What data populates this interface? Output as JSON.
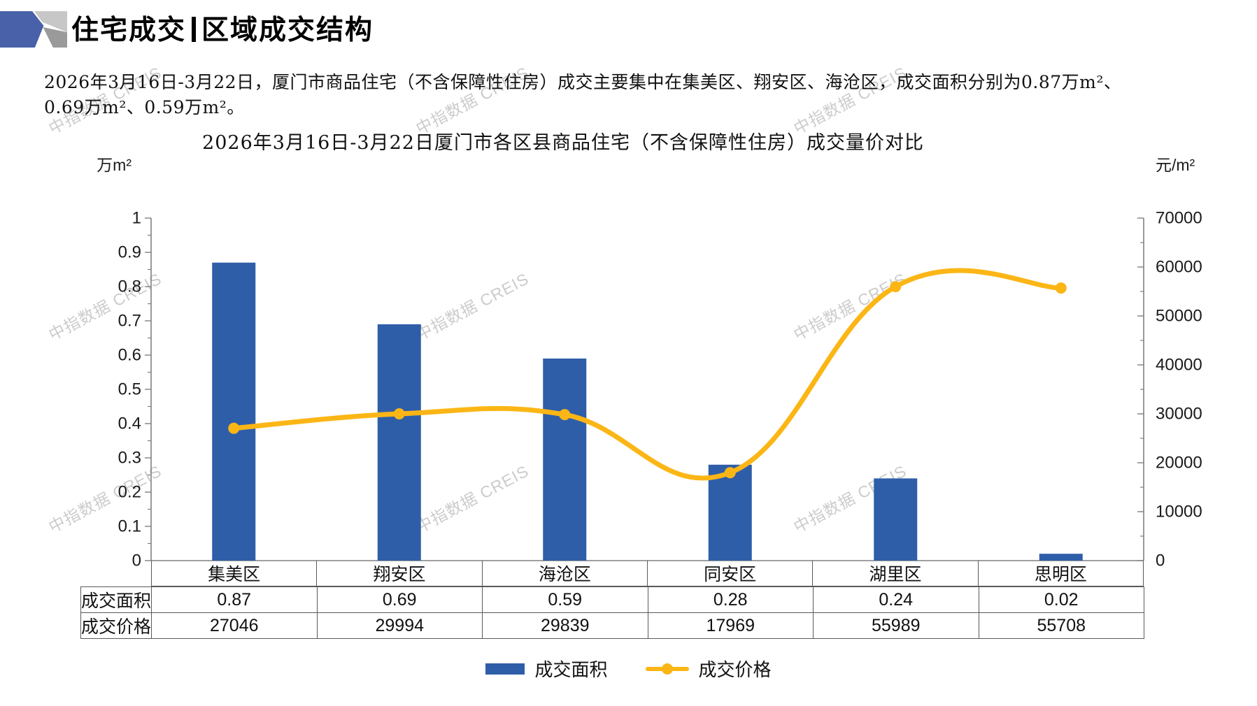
{
  "header": {
    "title_left": "住宅成交",
    "title_right": "区域成交结构"
  },
  "summary": {
    "line1": "2026年3月16日-3月22日，厦门市商品住宅（不含保障性住房）成交主要集中在集美区、翔安区、海沧区，成交面积分别为0.87万m²、",
    "line2": "0.69万m²、0.59万m²。"
  },
  "watermark": {
    "text": "中指数据 CREIS"
  },
  "chart_data": {
    "type": "bar",
    "subtype": "bar+line combo, dual y-axis",
    "title": "2026年3月16日-3月22日厦门市各区县商品住宅（不含保障性住房）成交量价对比",
    "categories": [
      "集美区",
      "翔安区",
      "海沧区",
      "同安区",
      "湖里区",
      "思明区"
    ],
    "series": [
      {
        "name": "成交面积",
        "type": "bar",
        "axis": "left",
        "unit": "万m²",
        "color": "#2f5ea8",
        "values": [
          0.87,
          0.69,
          0.59,
          0.28,
          0.24,
          0.02
        ]
      },
      {
        "name": "成交价格",
        "type": "line",
        "axis": "right",
        "unit": "元/m²",
        "color": "#fbb616",
        "values": [
          27046,
          29994,
          29839,
          17969,
          55989,
          55708
        ]
      }
    ],
    "left_axis": {
      "unit": "万m²",
      "min": 0,
      "max": 1,
      "major_step": 0.1,
      "minor_step": 0.05,
      "ticks": [
        "1",
        "0.9",
        "0.8",
        "0.7",
        "0.6",
        "0.5",
        "0.4",
        "0.3",
        "0.2",
        "0.1",
        "0"
      ]
    },
    "right_axis": {
      "unit": "元/m²",
      "min": 0,
      "max": 70000,
      "major_step": 10000,
      "minor_step": 5000,
      "ticks": [
        "70000",
        "60000",
        "50000",
        "40000",
        "30000",
        "20000",
        "10000",
        "0"
      ]
    },
    "legend": [
      {
        "label": "成交面积",
        "marker": "bar-swatch",
        "color": "#2f5ea8"
      },
      {
        "label": "成交价格",
        "marker": "line-marker",
        "color": "#fbb616"
      }
    ],
    "grid": "off",
    "legend_position": "bottom",
    "table": {
      "row_headers": [
        "成交面积",
        "成交价格"
      ],
      "rows": [
        [
          "0.87",
          "0.69",
          "0.59",
          "0.28",
          "0.24",
          "0.02"
        ],
        [
          "27046",
          "29994",
          "29839",
          "17969",
          "55989",
          "55708"
        ]
      ]
    }
  },
  "colors": {
    "bar": "#2f5ea8",
    "line": "#fbb616",
    "axis": "#808080",
    "table_border": "#595959",
    "watermark": "#cccccc",
    "logo_blue": "#4961a8",
    "logo_gray_light": "#c7c7c7",
    "logo_gray_dark": "#9a9a9a"
  }
}
